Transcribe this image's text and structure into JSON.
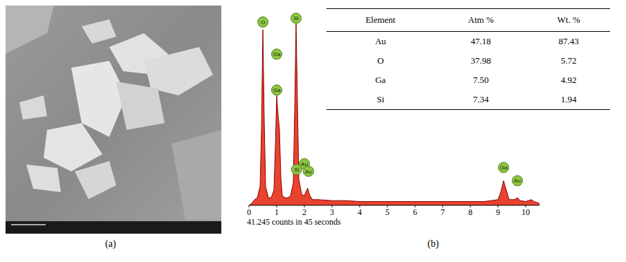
{
  "panel_labels": [
    "(a)",
    "(b)"
  ],
  "table": {
    "header": [
      "Element",
      "Atm %",
      "Wt. %"
    ],
    "rows": [
      [
        "Au",
        "47.18",
        "87.43"
      ],
      [
        "O",
        "37.98",
        "5.72"
      ],
      [
        "Ga",
        "7.50",
        "4.92"
      ],
      [
        "Si",
        "7.34",
        "1.94"
      ]
    ]
  },
  "chart_data": {
    "type": "area",
    "color": "#e8432f",
    "x": [
      0,
      0.1,
      0.2,
      0.3,
      0.4,
      0.45,
      0.5,
      0.55,
      0.6,
      0.7,
      0.8,
      0.9,
      0.95,
      1.0,
      1.05,
      1.1,
      1.15,
      1.2,
      1.3,
      1.4,
      1.5,
      1.6,
      1.65,
      1.7,
      1.75,
      1.8,
      1.85,
      1.9,
      2.0,
      2.05,
      2.12,
      2.2,
      2.3,
      2.5,
      3,
      3.5,
      4,
      4.5,
      5,
      5.5,
      6,
      6.5,
      7,
      7.5,
      8,
      8.5,
      9.0,
      9.1,
      9.2,
      9.3,
      9.4,
      9.6,
      9.7,
      9.8,
      10,
      10.2,
      10.3,
      10.5
    ],
    "values": [
      0,
      1,
      3,
      4,
      10,
      40,
      93,
      45,
      10,
      4,
      4,
      8,
      30,
      58,
      48,
      40,
      15,
      5,
      4,
      4,
      5,
      12,
      50,
      96,
      55,
      14,
      10,
      6,
      5,
      7,
      9,
      5,
      3,
      3,
      2.5,
      2.5,
      2,
      2,
      2,
      2,
      2,
      2,
      2,
      2,
      2,
      2,
      3,
      7,
      13,
      8,
      3,
      3,
      4,
      2.5,
      2,
      3,
      2,
      1
    ],
    "xlim": [
      0,
      10.5
    ],
    "xticks": [
      0,
      1,
      2,
      3,
      4,
      5,
      6,
      7,
      8,
      9,
      10
    ],
    "ylim": [
      0,
      105
    ],
    "tick_labels": "x",
    "grid": false,
    "peak_labels": [
      {
        "label": "O",
        "x": 0.5,
        "y": 97
      },
      {
        "label": "Ga",
        "x": 1.0,
        "y": 80
      },
      {
        "label": "Ga",
        "x": 1.0,
        "y": 61
      },
      {
        "label": "Si",
        "x": 1.7,
        "y": 99
      },
      {
        "label": "Si",
        "x": 1.72,
        "y": 19
      },
      {
        "label": "Au",
        "x": 2.0,
        "y": 22
      },
      {
        "label": "Au",
        "x": 2.15,
        "y": 18
      },
      {
        "label": "Ga",
        "x": 9.2,
        "y": 20
      },
      {
        "label": "Au",
        "x": 9.7,
        "y": 13
      }
    ],
    "annotations": [
      "41.245 counts in 45 seconds"
    ]
  }
}
